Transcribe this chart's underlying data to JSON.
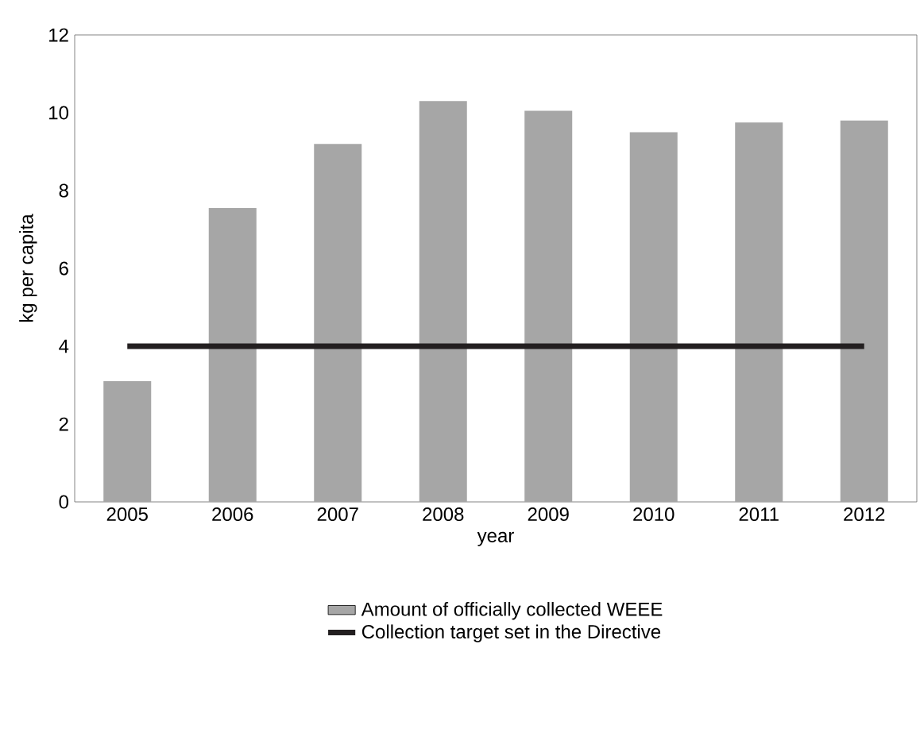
{
  "chart_data": {
    "type": "bar",
    "xlabel": "year",
    "ylabel": "kg per capita",
    "categories": [
      "2005",
      "2006",
      "2007",
      "2008",
      "2009",
      "2010",
      "2011",
      "2012"
    ],
    "series": [
      {
        "name": "Amount of officially collected WEEE",
        "color": "#a6a6a6",
        "values": [
          3.1,
          7.55,
          9.2,
          10.3,
          10.05,
          9.5,
          9.75,
          9.8
        ]
      },
      {
        "name": "Collection target set in the Directive",
        "type": "line",
        "color": "#231f20",
        "values": [
          4,
          4,
          4,
          4,
          4,
          4,
          4,
          4
        ]
      }
    ],
    "ylim": [
      0,
      12
    ],
    "yticks": [
      0,
      2,
      4,
      6,
      8,
      10,
      12
    ],
    "legend": "bottom",
    "grid": false
  }
}
